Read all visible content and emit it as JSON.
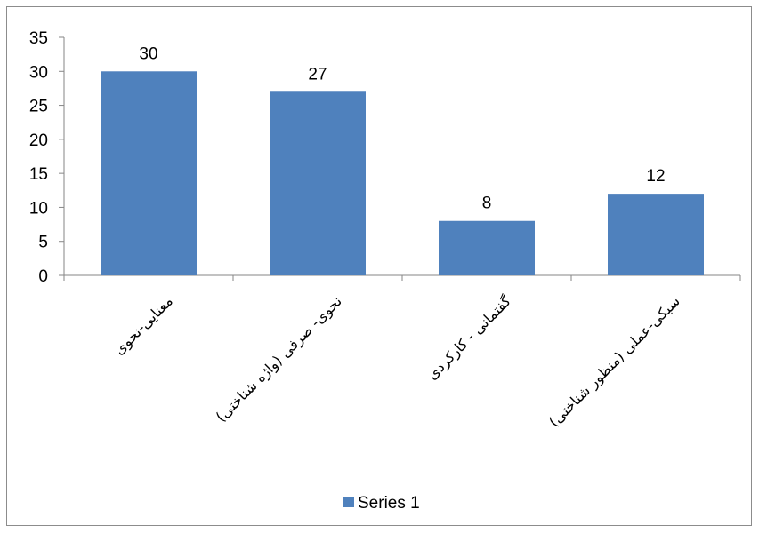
{
  "chart_data": {
    "type": "bar",
    "title": "",
    "xlabel": "",
    "ylabel": "",
    "categories": [
      "معنایی-نحوی",
      "نحوی- صرفی (واژه شناختی)",
      "گفتمانی - کارکردی",
      "سبکی-عملی (منظور شناختی)"
    ],
    "series": [
      {
        "name": "Series 1",
        "values": [
          30,
          27,
          8,
          12
        ],
        "color": "#4f81bd"
      }
    ],
    "ylim": [
      0,
      35
    ],
    "yticks": [
      0,
      5,
      10,
      15,
      20,
      25,
      30,
      35
    ],
    "grid": false,
    "data_labels": true,
    "legend": "bottom"
  }
}
